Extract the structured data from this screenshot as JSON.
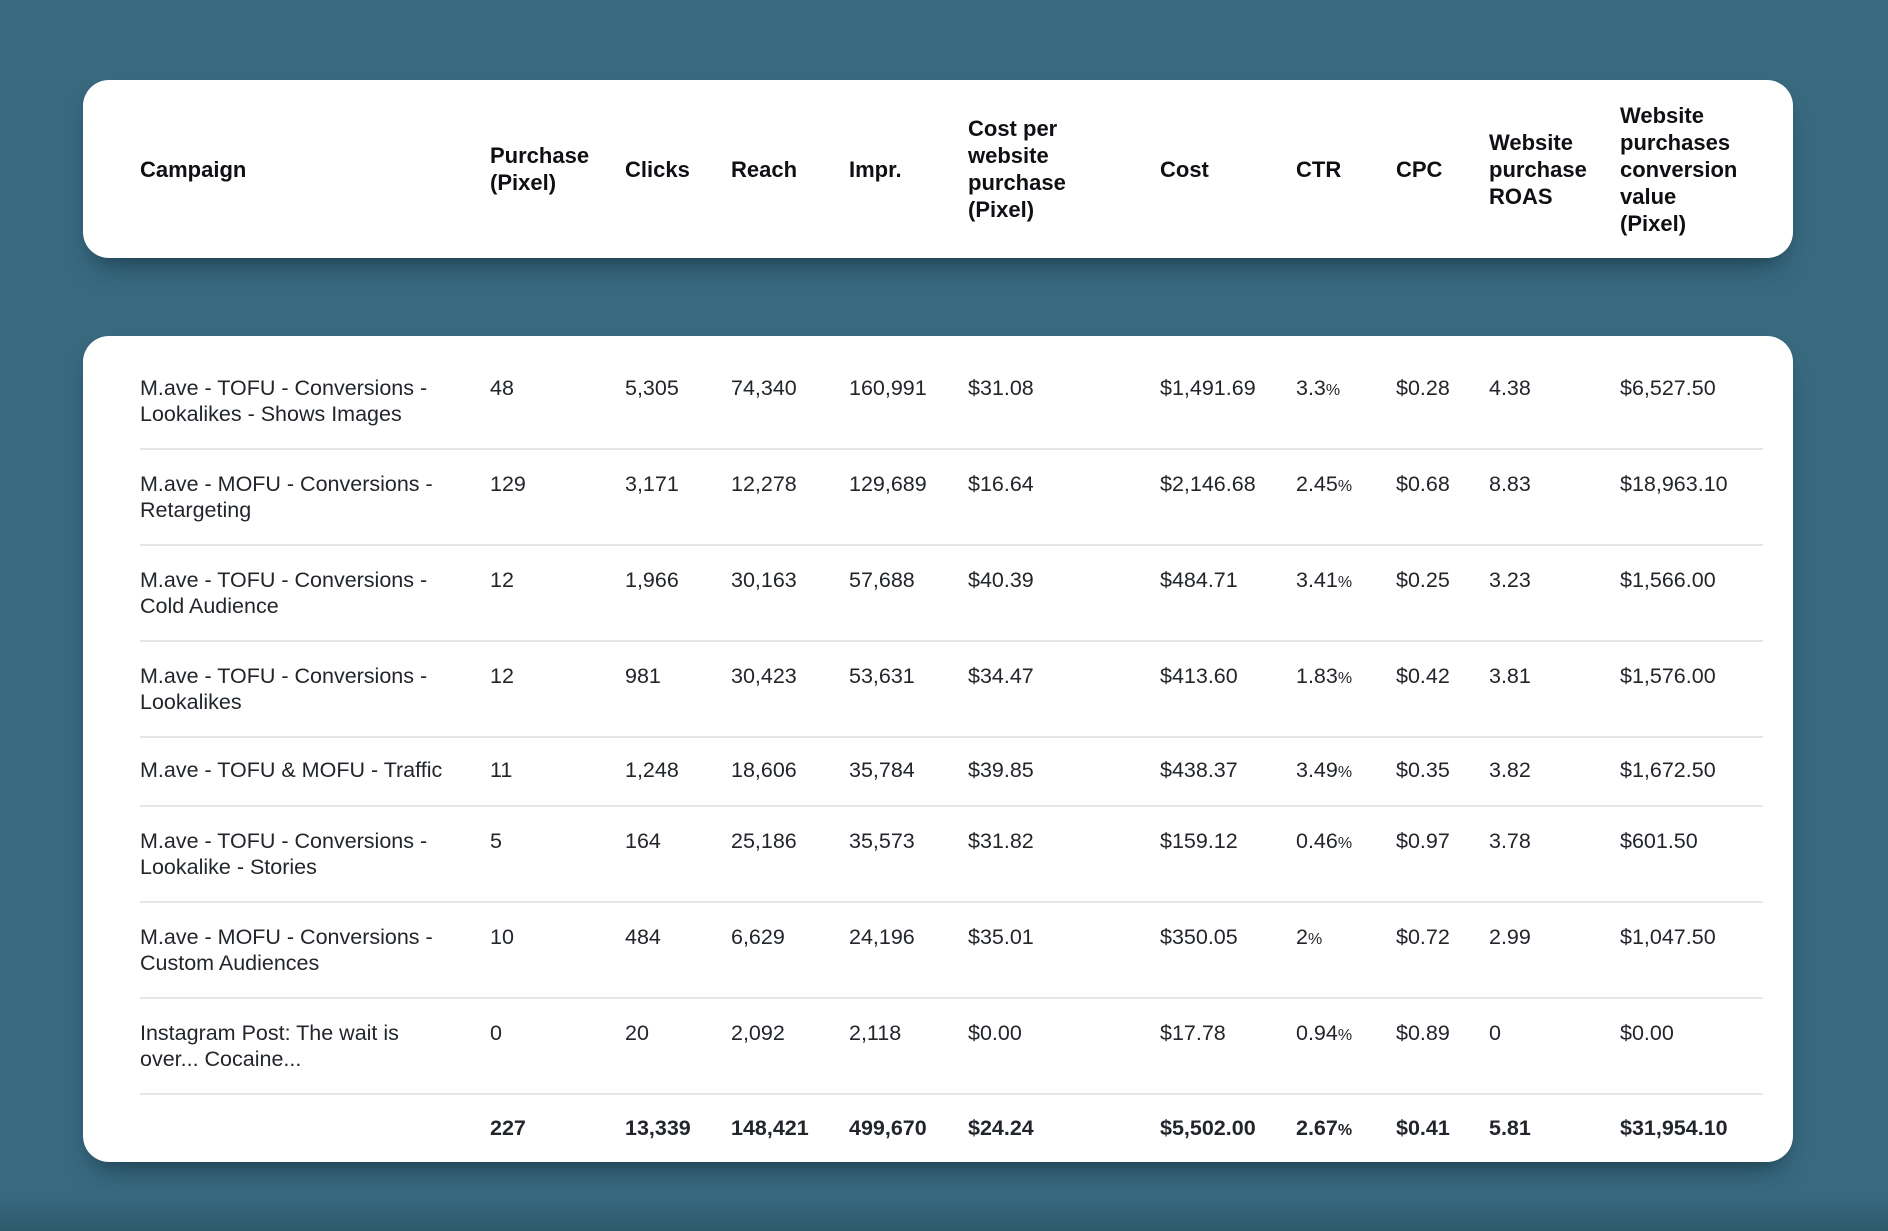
{
  "theme": {
    "page_background": "#38697f",
    "page_background_bottom": "#2e5a6d",
    "card_background": "#ffffff",
    "header_text_color": "#0e1013",
    "body_text_color": "#22262b",
    "divider_color": "#e4e7ea"
  },
  "table": {
    "columns": [
      {
        "id": "campaign",
        "label": "Campaign",
        "lines": [
          "Campaign"
        ]
      },
      {
        "id": "purchase-pixel",
        "label": "Purchase (Pixel)",
        "lines": [
          "Purchase",
          "(Pixel)"
        ]
      },
      {
        "id": "clicks",
        "label": "Clicks",
        "lines": [
          "Clicks"
        ]
      },
      {
        "id": "reach",
        "label": "Reach",
        "lines": [
          "Reach"
        ]
      },
      {
        "id": "impressions",
        "label": "Impr.",
        "lines": [
          "Impr."
        ]
      },
      {
        "id": "cost-per-website-purchase-pixel",
        "label": "Cost per website purchase (Pixel)",
        "lines": [
          "Cost per",
          "website",
          "purchase",
          "(Pixel)"
        ]
      },
      {
        "id": "cost",
        "label": "Cost",
        "lines": [
          "Cost"
        ]
      },
      {
        "id": "ctr",
        "label": "CTR",
        "lines": [
          "CTR"
        ]
      },
      {
        "id": "cpc",
        "label": "CPC",
        "lines": [
          "CPC"
        ]
      },
      {
        "id": "website-purchase-roas",
        "label": "Website purchase ROAS",
        "lines": [
          "Website",
          "purchase",
          "ROAS"
        ]
      },
      {
        "id": "website-purchases-conversion-value-pixel",
        "label": "Website purchases conversion value (Pixel)",
        "lines": [
          "Website",
          "purchases",
          "conversion",
          "value",
          "(Pixel)"
        ]
      }
    ],
    "rows": [
      {
        "campaign": "M.ave - TOFU - Conversions - Lookalikes - Shows Images",
        "campaign_lines": [
          "M.ave - TOFU - Conversions -",
          "Lookalikes - Shows Images"
        ],
        "values": [
          "48",
          "5,305",
          "74,340",
          "160,991",
          "$31.08",
          "$1,491.69",
          "3.3%",
          "$0.28",
          "4.38",
          "$6,527.50"
        ]
      },
      {
        "campaign": "M.ave - MOFU - Conversions - Retargeting",
        "campaign_lines": [
          "M.ave - MOFU - Conversions -",
          "Retargeting"
        ],
        "values": [
          "129",
          "3,171",
          "12,278",
          "129,689",
          "$16.64",
          "$2,146.68",
          "2.45%",
          "$0.68",
          "8.83",
          "$18,963.10"
        ]
      },
      {
        "campaign": "M.ave - TOFU - Conversions - Cold Audience",
        "campaign_lines": [
          "M.ave - TOFU - Conversions -",
          "Cold Audience"
        ],
        "values": [
          "12",
          "1,966",
          "30,163",
          "57,688",
          "$40.39",
          "$484.71",
          "3.41%",
          "$0.25",
          "3.23",
          "$1,566.00"
        ]
      },
      {
        "campaign": "M.ave - TOFU - Conversions - Lookalikes",
        "campaign_lines": [
          "M.ave - TOFU - Conversions -",
          "Lookalikes"
        ],
        "values": [
          "12",
          "981",
          "30,423",
          "53,631",
          "$34.47",
          "$413.60",
          "1.83%",
          "$0.42",
          "3.81",
          "$1,576.00"
        ]
      },
      {
        "campaign": "M.ave - TOFU & MOFU - Traffic",
        "campaign_lines": [
          "M.ave - TOFU & MOFU - Traffic"
        ],
        "values": [
          "11",
          "1,248",
          "18,606",
          "35,784",
          "$39.85",
          "$438.37",
          "3.49%",
          "$0.35",
          "3.82",
          "$1,672.50"
        ]
      },
      {
        "campaign": "M.ave - TOFU - Conversions - Lookalike - Stories",
        "campaign_lines": [
          "M.ave - TOFU - Conversions -",
          "Lookalike - Stories"
        ],
        "values": [
          "5",
          "164",
          "25,186",
          "35,573",
          "$31.82",
          "$159.12",
          "0.46%",
          "$0.97",
          "3.78",
          "$601.50"
        ]
      },
      {
        "campaign": "M.ave - MOFU - Conversions - Custom Audiences",
        "campaign_lines": [
          "M.ave - MOFU - Conversions -",
          "Custom Audiences"
        ],
        "values": [
          "10",
          "484",
          "6,629",
          "24,196",
          "$35.01",
          "$350.05",
          "2%",
          "$0.72",
          "2.99",
          "$1,047.50"
        ]
      },
      {
        "campaign": "Instagram Post: The wait is over... Cocaine...",
        "campaign_lines": [
          "Instagram Post: The wait is",
          "over... Cocaine..."
        ],
        "values": [
          "0",
          "20",
          "2,092",
          "2,118",
          "$0.00",
          "$17.78",
          "0.94%",
          "$0.89",
          "0",
          "$0.00"
        ]
      }
    ],
    "totals": {
      "values": [
        "227",
        "13,339",
        "148,421",
        "499,670",
        "$24.24",
        "$5,502.00",
        "2.67%",
        "$0.41",
        "5.81",
        "$31,954.10"
      ]
    }
  }
}
